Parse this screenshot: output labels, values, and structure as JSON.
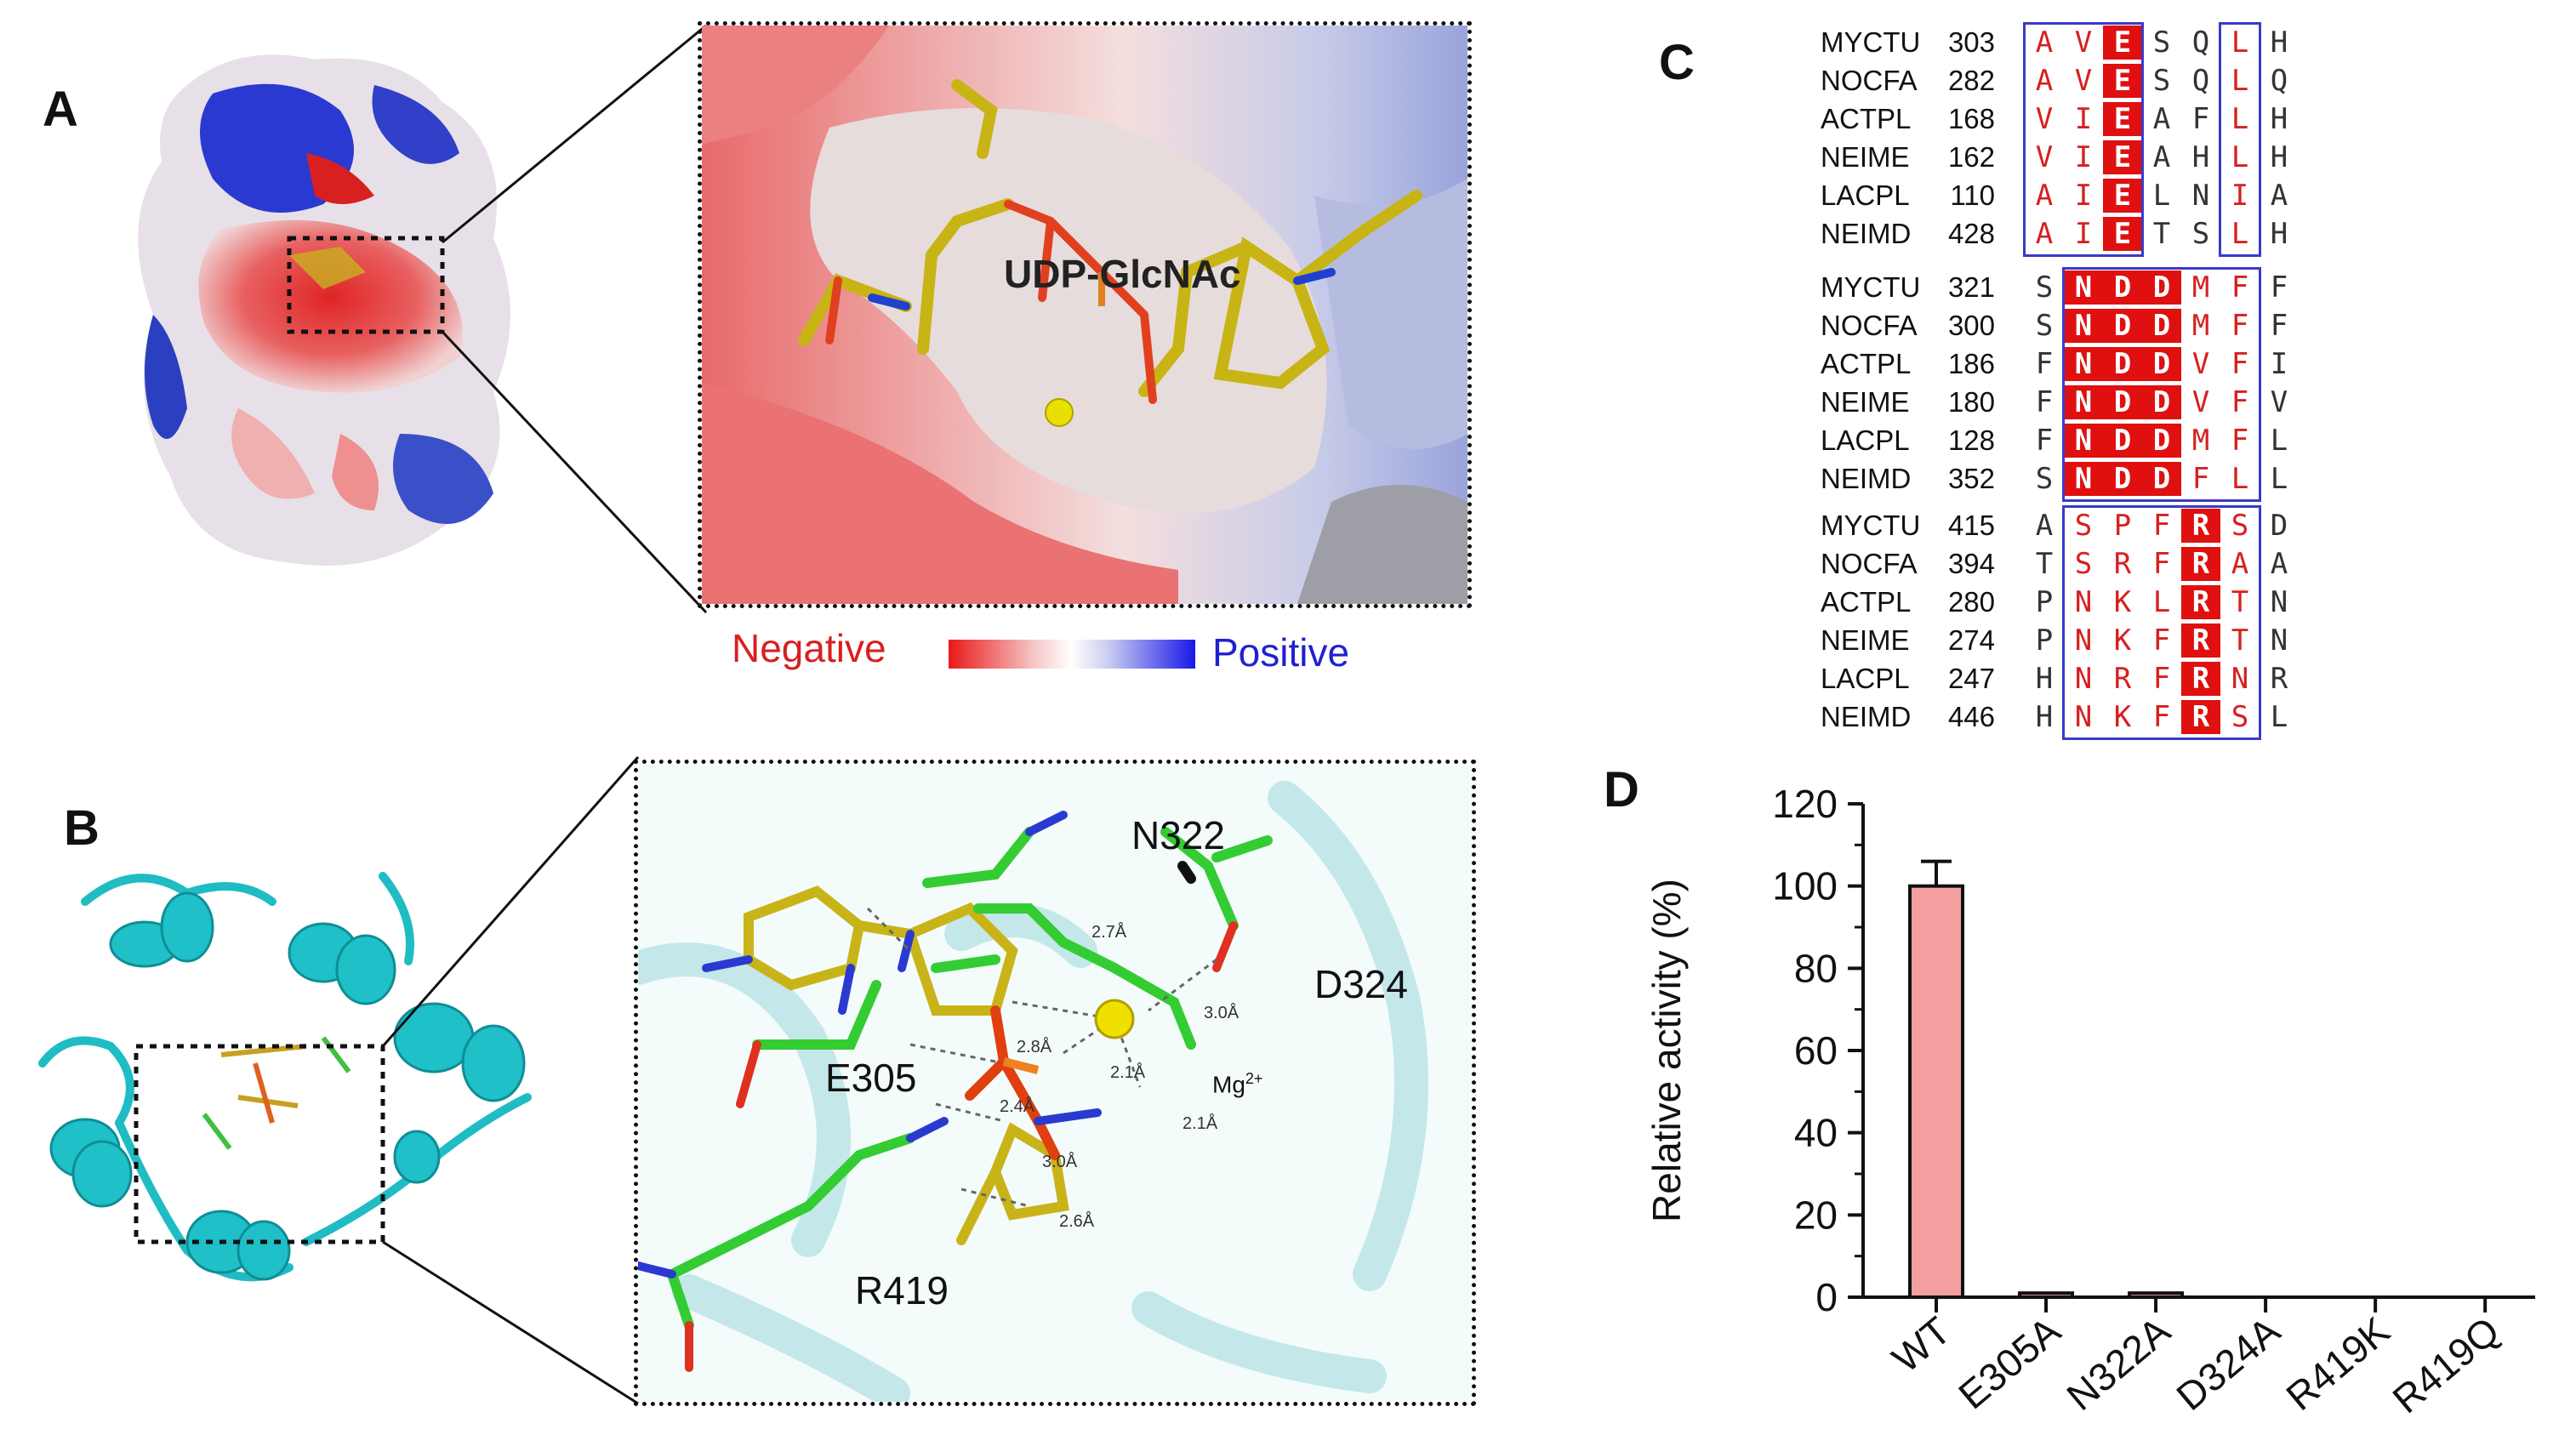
{
  "panels": {
    "a": {
      "letter": "A",
      "ligand_label": "UDP-GlcNAc",
      "legend": {
        "negative_label": "Negative",
        "positive_label": "Positive",
        "negative_color": "#e02020",
        "positive_color": "#2020e0"
      }
    },
    "b": {
      "letter": "B",
      "residues": [
        "N322",
        "D324",
        "E305",
        "R419"
      ],
      "ion_label": "Mg",
      "ion_charge": "2+",
      "distances": [
        "2.7Å",
        "3.0Å",
        "2.8Å",
        "2.1Å",
        "2.4Å",
        "2.1Å",
        "3.0Å",
        "2.6Å"
      ]
    },
    "c": {
      "letter": "C",
      "blocks": [
        {
          "rows": [
            {
              "name": "MYCTU",
              "start": "303",
              "seq": "AVESQLH"
            },
            {
              "name": "NOCFA",
              "start": "282",
              "seq": "AVESQLQ"
            },
            {
              "name": "ACTPL",
              "start": "168",
              "seq": "VIEAFLH"
            },
            {
              "name": "NEIME",
              "start": "162",
              "seq": "VIEAHLH"
            },
            {
              "name": "LACPL",
              "start": "110",
              "seq": "AIELNIA"
            },
            {
              "name": "NEIMD",
              "start": "428",
              "seq": "AIETSLH"
            }
          ]
        },
        {
          "rows": [
            {
              "name": "MYCTU",
              "start": "321",
              "seq": "SNDDMFF"
            },
            {
              "name": "NOCFA",
              "start": "300",
              "seq": "SNDDMFF"
            },
            {
              "name": "ACTPL",
              "start": "186",
              "seq": "FNDDVFI"
            },
            {
              "name": "NEIME",
              "start": "180",
              "seq": "FNDDVFV"
            },
            {
              "name": "LACPL",
              "start": "128",
              "seq": "FNDDMFL"
            },
            {
              "name": "NEIMD",
              "start": "352",
              "seq": "SNDDFLL"
            }
          ]
        },
        {
          "rows": [
            {
              "name": "MYCTU",
              "start": "415",
              "seq": "ASPFRSD"
            },
            {
              "name": "NOCFA",
              "start": "394",
              "seq": "TSRFRAA"
            },
            {
              "name": "ACTPL",
              "start": "280",
              "seq": "PNKLRTN"
            },
            {
              "name": "NEIME",
              "start": "274",
              "seq": "PNKFRTN"
            },
            {
              "name": "LACPL",
              "start": "247",
              "seq": "HNRFRNR"
            },
            {
              "name": "NEIMD",
              "start": "446",
              "seq": "HNKFRSL"
            }
          ]
        }
      ]
    },
    "d": {
      "letter": "D"
    }
  },
  "chart_data": {
    "type": "bar",
    "categories": [
      "WT",
      "E305A",
      "N322A",
      "D324A",
      "R419K",
      "R419Q"
    ],
    "values": [
      100,
      1,
      1,
      0,
      0,
      0
    ],
    "errors": [
      6,
      0,
      0,
      0,
      0,
      0
    ],
    "ylabel": "Relative activity (%)",
    "ylim": [
      0,
      120
    ],
    "yticks": [
      "0",
      "20",
      "40",
      "60",
      "80",
      "100",
      "120"
    ],
    "bar_color": "#f4a0a0"
  }
}
